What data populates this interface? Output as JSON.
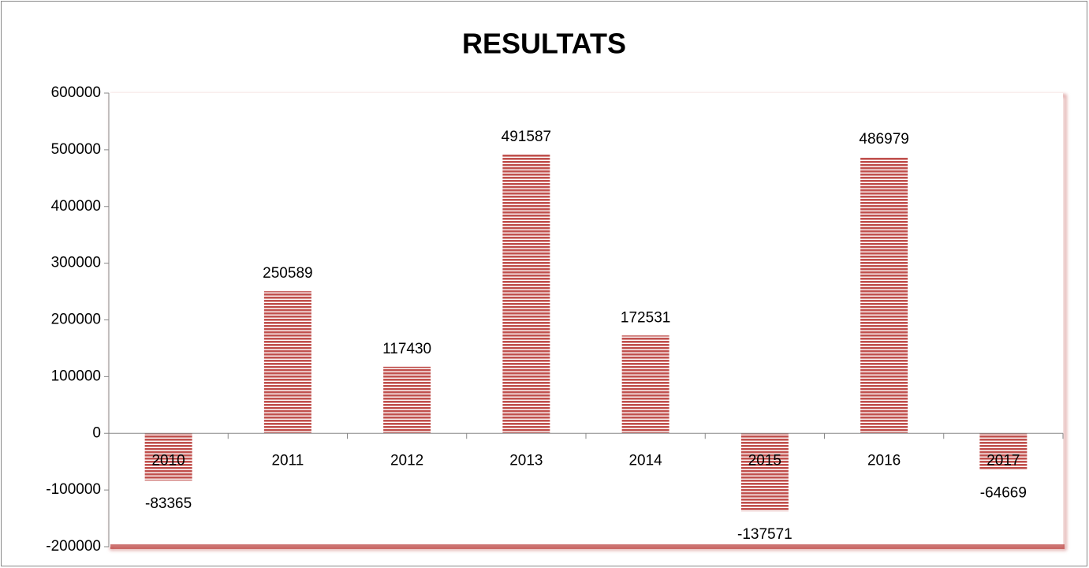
{
  "chart_data": {
    "type": "bar",
    "title": "RESULTATS",
    "categories": [
      "2010",
      "2011",
      "2012",
      "2013",
      "2014",
      "2015",
      "2016",
      "2017"
    ],
    "values": [
      -83365,
      250589,
      117430,
      491587,
      172531,
      -137571,
      486979,
      -64669
    ],
    "color": "#c0504d",
    "ylim": [
      -200000,
      600000
    ],
    "yticks": [
      -200000,
      -100000,
      0,
      100000,
      200000,
      300000,
      400000,
      500000,
      600000
    ],
    "grid": false,
    "value_labels_shown": true
  }
}
